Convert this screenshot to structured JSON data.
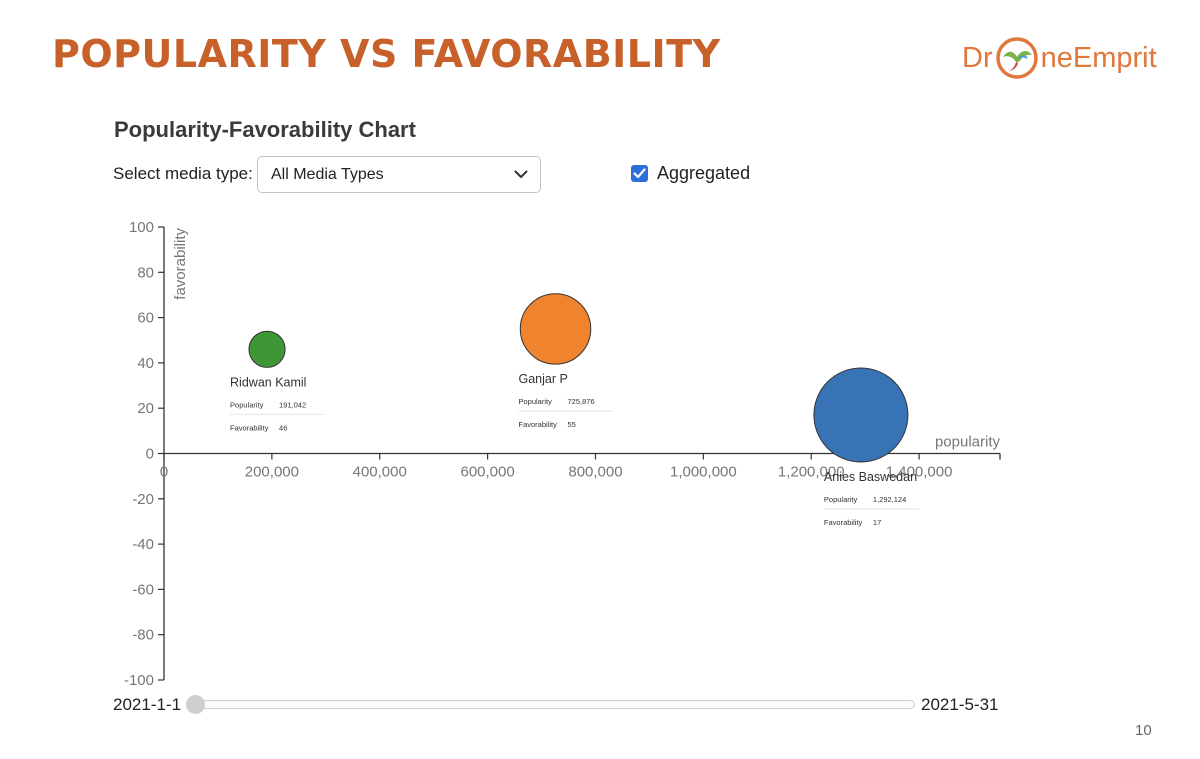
{
  "slide": {
    "title": "POPULARITY VS FAVORABILITY",
    "page_number": "10",
    "accent_color": "#c8602a"
  },
  "logo": {
    "text_left": "Dr",
    "text_right": "neEmprit",
    "color": "#e0783c"
  },
  "controls": {
    "media_type_label": "Select media type:",
    "media_type_selected": "All Media Types",
    "aggregated_label": "Aggregated",
    "aggregated_checked": true
  },
  "slider": {
    "start_label": "2021-1-1",
    "end_label": "2021-5-31"
  },
  "chart_data": {
    "type": "scatter",
    "title": "Popularity-Favorability Chart",
    "xlabel": "popularity",
    "ylabel": "favorability",
    "xlim": [
      0,
      1550000
    ],
    "ylim": [
      -100,
      100
    ],
    "x_ticks": [
      0,
      200000,
      400000,
      600000,
      800000,
      1000000,
      1200000,
      1400000
    ],
    "x_tick_labels": [
      "0",
      "200,000",
      "400,000",
      "600,000",
      "800,000",
      "1,000,000",
      "1,200,000",
      "1,400,000"
    ],
    "y_ticks": [
      100,
      80,
      60,
      40,
      20,
      0,
      -20,
      -40,
      -60,
      -80,
      -100
    ],
    "y_tick_labels": [
      "100",
      "80",
      "60",
      "40",
      "20",
      "0",
      "-20",
      "-40",
      "-60",
      "-80",
      "-100"
    ],
    "tooltip_labels": {
      "popularity": "Popularity",
      "favorability": "Favorability"
    },
    "points": [
      {
        "name": "Ridwan Kamil",
        "popularity": 191042,
        "favorability": 46,
        "popularity_label": "191,042",
        "favorability_label": "46",
        "color": "#3e9635"
      },
      {
        "name": "Ganjar P",
        "popularity": 725876,
        "favorability": 55,
        "popularity_label": "725,876",
        "favorability_label": "55",
        "color": "#f0832e"
      },
      {
        "name": "Anies Baswedan",
        "popularity": 1292124,
        "favorability": 17,
        "popularity_label": "1,292,124",
        "favorability_label": "17",
        "color": "#3874b5"
      }
    ]
  }
}
